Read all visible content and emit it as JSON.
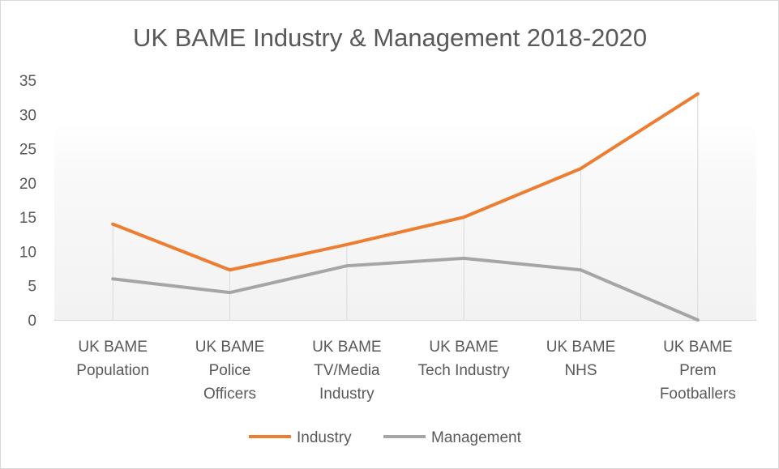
{
  "chart_data": {
    "type": "line",
    "title": "UK BAME Industry & Management 2018-2020",
    "xlabel": "",
    "ylabel": "",
    "ylim": [
      0,
      35
    ],
    "y_ticks": [
      0,
      5,
      10,
      15,
      20,
      25,
      30,
      35
    ],
    "grid": "vertical drop lines",
    "legend_position": "bottom",
    "categories": [
      [
        "UK BAME",
        "Population"
      ],
      [
        "UK BAME",
        "Police",
        "Officers"
      ],
      [
        "UK BAME",
        "TV/Media",
        "Industry"
      ],
      [
        "UK BAME",
        "Tech Industry"
      ],
      [
        "UK BAME",
        "NHS"
      ],
      [
        "UK BAME",
        "Prem",
        "Footballers"
      ]
    ],
    "series": [
      {
        "name": "Industry",
        "color": "#ed7d31",
        "values": [
          14,
          7.3,
          11,
          15,
          22.1,
          33
        ]
      },
      {
        "name": "Management",
        "color": "#a5a5a5",
        "values": [
          6,
          4,
          7.9,
          9,
          7.3,
          0
        ]
      }
    ]
  }
}
